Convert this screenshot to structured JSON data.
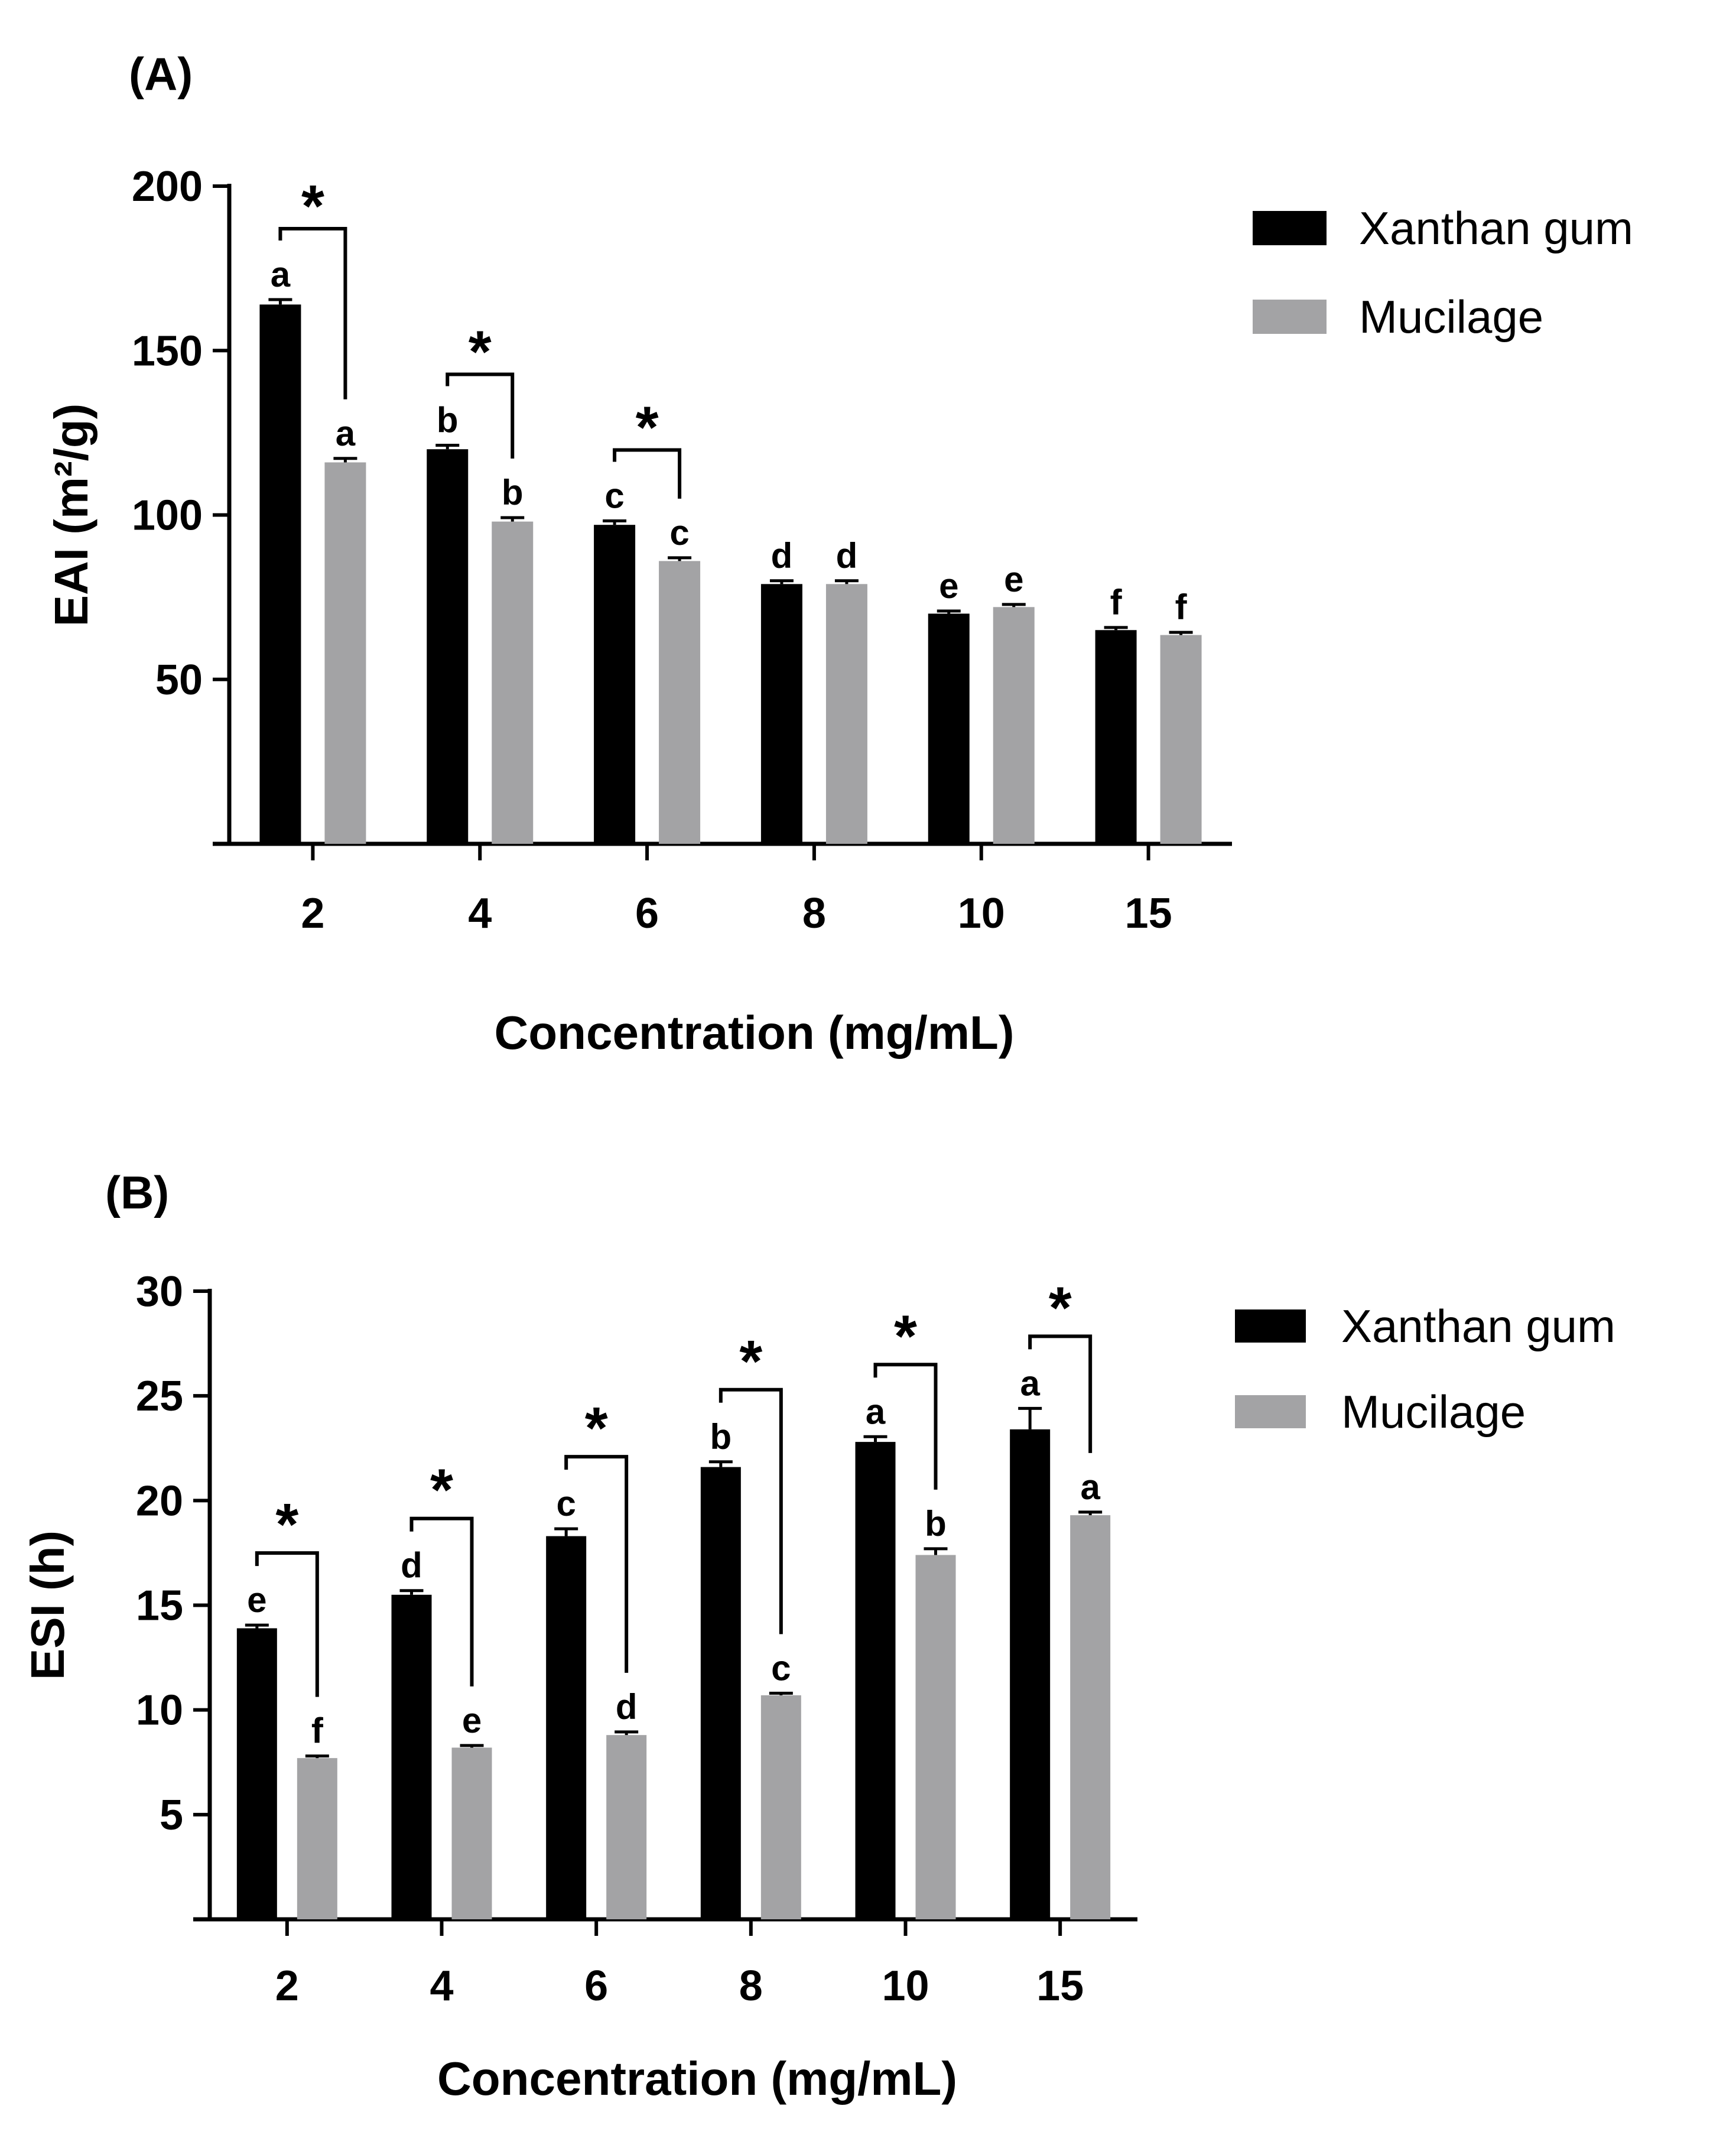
{
  "chart_data": [
    {
      "type": "bar",
      "panel_label": "(A)",
      "categories": [
        "2",
        "4",
        "6",
        "8",
        "10",
        "15"
      ],
      "series": [
        {
          "name": "Xanthan gum",
          "color": "#000000",
          "values": [
            164,
            120,
            97,
            79,
            70,
            65
          ],
          "errors": [
            1.5,
            1.2,
            1.2,
            1.0,
            0.8,
            0.8
          ],
          "letters": [
            "a",
            "b",
            "c",
            "d",
            "e",
            "f"
          ]
        },
        {
          "name": "Mucilage",
          "color": "#a3a3a5",
          "values": [
            116,
            98,
            86,
            79,
            72,
            63.5
          ],
          "errors": [
            1.2,
            1.2,
            1.0,
            1.0,
            0.8,
            0.8
          ],
          "letters": [
            "a",
            "b",
            "c",
            "d",
            "e",
            "f"
          ]
        }
      ],
      "significance": [
        "*",
        "*",
        "*",
        "",
        "",
        ""
      ],
      "xlabel": "Concentration (mg/mL)",
      "ylabel": "EAI (m²/g)",
      "ylim": [
        0,
        200
      ],
      "yticks": [
        "50",
        "100",
        "150",
        "200"
      ],
      "legend": "top-right"
    },
    {
      "type": "bar",
      "panel_label": "(B)",
      "categories": [
        "2",
        "4",
        "6",
        "8",
        "10",
        "15"
      ],
      "series": [
        {
          "name": "Xanthan gum",
          "color": "#000000",
          "values": [
            13.9,
            15.5,
            18.3,
            21.6,
            22.8,
            23.4
          ],
          "errors": [
            0.15,
            0.2,
            0.35,
            0.25,
            0.25,
            1.0
          ],
          "letters": [
            "e",
            "d",
            "c",
            "b",
            "a",
            "a"
          ]
        },
        {
          "name": "Mucilage",
          "color": "#a3a3a5",
          "values": [
            7.7,
            8.2,
            8.8,
            10.7,
            17.4,
            19.3
          ],
          "errors": [
            0.1,
            0.1,
            0.15,
            0.1,
            0.3,
            0.15
          ],
          "letters": [
            "f",
            "e",
            "d",
            "c",
            "b",
            "a"
          ]
        }
      ],
      "significance": [
        "*",
        "*",
        "*",
        "*",
        "*",
        "*"
      ],
      "xlabel": "Concentration (mg/mL)",
      "ylabel": "ESI (h)",
      "ylim": [
        0,
        30
      ],
      "yticks": [
        "5",
        "10",
        "15",
        "20",
        "25",
        "30"
      ],
      "legend": "top-right"
    }
  ]
}
